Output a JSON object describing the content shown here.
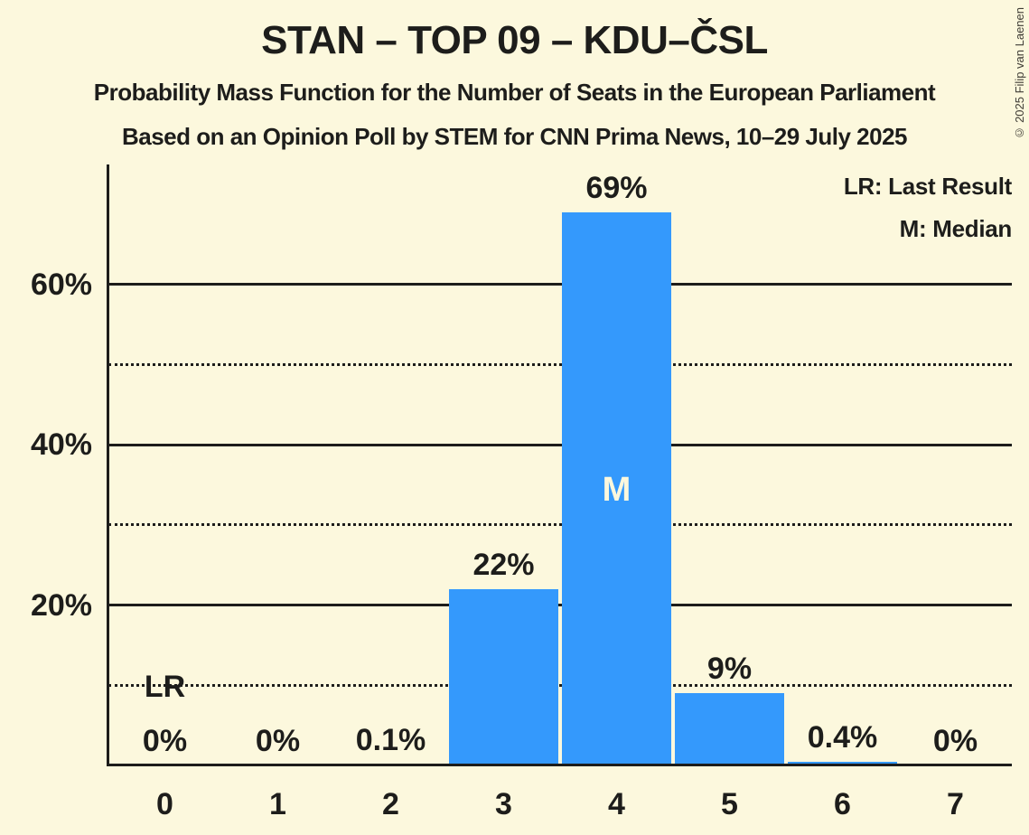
{
  "page": {
    "copyright": "© 2025 Filip van Laenen"
  },
  "chart_data": {
    "type": "bar",
    "title": "STAN – TOP 09 – KDU–ČSL",
    "subtitle": "Probability Mass Function for the Number of Seats in the European Parliament",
    "source": "Based on an Opinion Poll by STEM for CNN Prima News, 10–29 July 2025",
    "legend": {
      "lr": "LR: Last Result",
      "m": "M: Median"
    },
    "categories": [
      "0",
      "1",
      "2",
      "3",
      "4",
      "5",
      "6",
      "7"
    ],
    "values": [
      0,
      0,
      0.1,
      22,
      69,
      9,
      0.4,
      0
    ],
    "value_labels": [
      "0%",
      "0%",
      "0.1%",
      "22%",
      "69%",
      "9%",
      "0.4%",
      "0%"
    ],
    "ylim": [
      0,
      75
    ],
    "yticks": [
      {
        "pct": 20,
        "label": "20%"
      },
      {
        "pct": 40,
        "label": "40%"
      },
      {
        "pct": 60,
        "label": "60%"
      }
    ],
    "solid_gridlines_pct": [
      20,
      40,
      60
    ],
    "dotted_gridlines_pct": [
      10,
      30,
      50
    ],
    "median": {
      "category": "4",
      "label": "M"
    },
    "last_result": {
      "category": "0",
      "label": "LR"
    },
    "grid": true,
    "legend_position": "top-right",
    "colors": {
      "background": "#fcf8dd",
      "bar": "#3499fc",
      "text": "#1d1d1b",
      "median_label": "#fcf8dd"
    }
  }
}
